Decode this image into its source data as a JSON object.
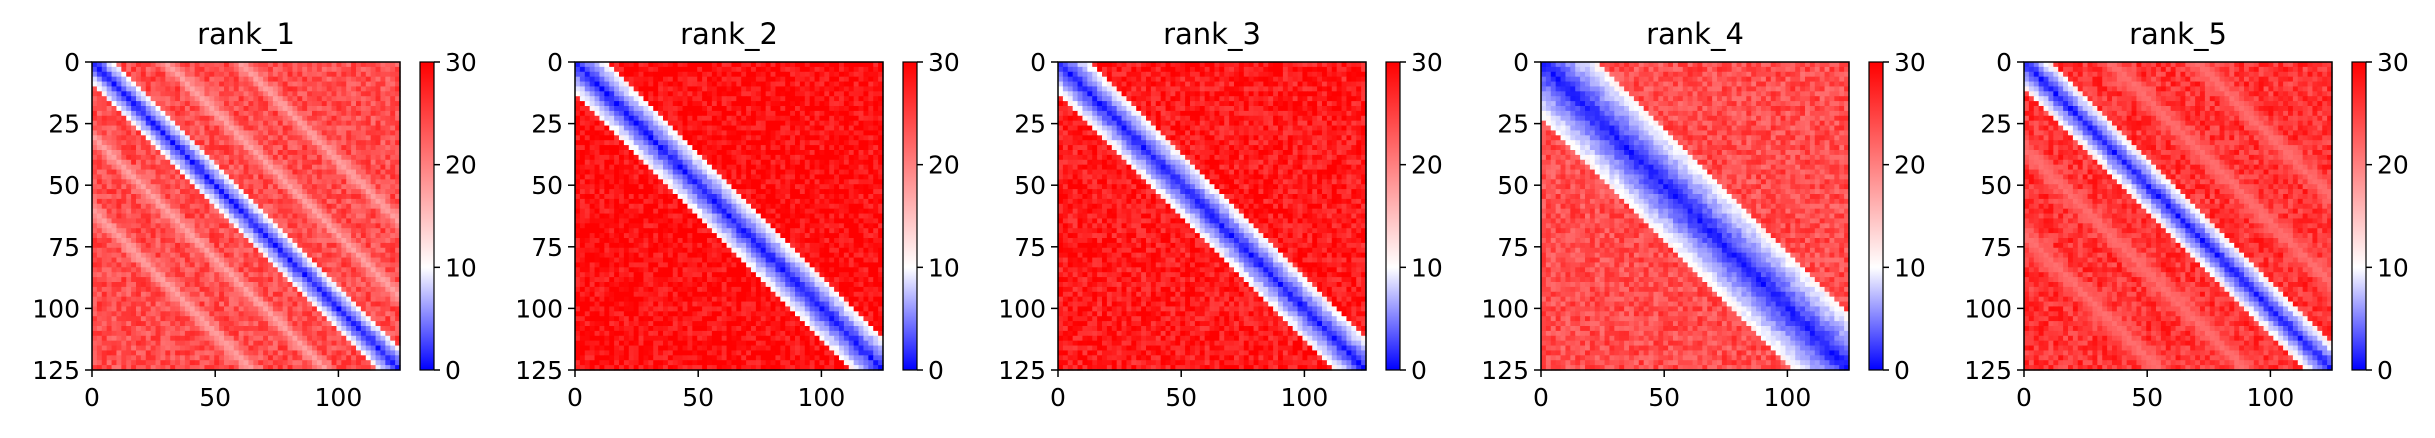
{
  "chart_data": [
    {
      "type": "heatmap",
      "title": "rank_1",
      "x_ticks": [
        0,
        50,
        100
      ],
      "y_ticks": [
        0,
        25,
        50,
        75,
        100,
        125
      ],
      "xlim": [
        0,
        125
      ],
      "ylim": [
        125,
        0
      ],
      "colorbar": {
        "range": [
          0,
          30
        ],
        "ticks": [
          0,
          10,
          20,
          30
        ],
        "colors": [
          "#0000ff",
          "#ffffff",
          "#ff0000"
        ]
      },
      "pattern": {
        "diag_width": 3.5,
        "ridge_offsets": [
          30,
          60
        ],
        "ridge_width": 6,
        "ridge_value": 17,
        "background": 24
      }
    },
    {
      "type": "heatmap",
      "title": "rank_2",
      "x_ticks": [
        0,
        50,
        100
      ],
      "y_ticks": [
        0,
        25,
        50,
        75,
        100,
        125
      ],
      "xlim": [
        0,
        125
      ],
      "ylim": [
        125,
        0
      ],
      "colorbar": {
        "range": [
          0,
          30
        ],
        "ticks": [
          0,
          10,
          20,
          30
        ],
        "colors": [
          "#0000ff",
          "#ffffff",
          "#ff0000"
        ]
      },
      "pattern": {
        "diag_width": 5,
        "ridge_offsets": [],
        "ridge_width": 0,
        "ridge_value": 0,
        "background": 29
      }
    },
    {
      "type": "heatmap",
      "title": "rank_3",
      "x_ticks": [
        0,
        50,
        100
      ],
      "y_ticks": [
        0,
        25,
        50,
        75,
        100,
        125
      ],
      "xlim": [
        0,
        125
      ],
      "ylim": [
        125,
        0
      ],
      "colorbar": {
        "range": [
          0,
          30
        ],
        "ticks": [
          0,
          10,
          20,
          30
        ],
        "colors": [
          "#0000ff",
          "#ffffff",
          "#ff0000"
        ]
      },
      "pattern": {
        "diag_width": 5,
        "ridge_offsets": [],
        "ridge_width": 0,
        "ridge_value": 0,
        "background": 28
      }
    },
    {
      "type": "heatmap",
      "title": "rank_4",
      "x_ticks": [
        0,
        50,
        100
      ],
      "y_ticks": [
        0,
        25,
        50,
        75,
        100,
        125
      ],
      "xlim": [
        0,
        125
      ],
      "ylim": [
        125,
        0
      ],
      "colorbar": {
        "range": [
          0,
          30
        ],
        "ticks": [
          0,
          10,
          20,
          30
        ],
        "colors": [
          "#0000ff",
          "#ffffff",
          "#ff0000"
        ]
      },
      "pattern": {
        "diag_width": 9,
        "ridge_offsets": [],
        "ridge_width": 0,
        "ridge_value": 0,
        "background": 24
      }
    },
    {
      "type": "heatmap",
      "title": "rank_5",
      "x_ticks": [
        0,
        50,
        100
      ],
      "y_ticks": [
        0,
        25,
        50,
        75,
        100,
        125
      ],
      "xlim": [
        0,
        125
      ],
      "ylim": [
        125,
        0
      ],
      "colorbar": {
        "range": [
          0,
          30
        ],
        "ticks": [
          0,
          10,
          20,
          30
        ],
        "colors": [
          "#0000ff",
          "#ffffff",
          "#ff0000"
        ]
      },
      "pattern": {
        "diag_width": 4,
        "ridge_offsets": [
          35,
          70
        ],
        "ridge_width": 8,
        "ridge_value": 21,
        "background": 26
      }
    }
  ]
}
